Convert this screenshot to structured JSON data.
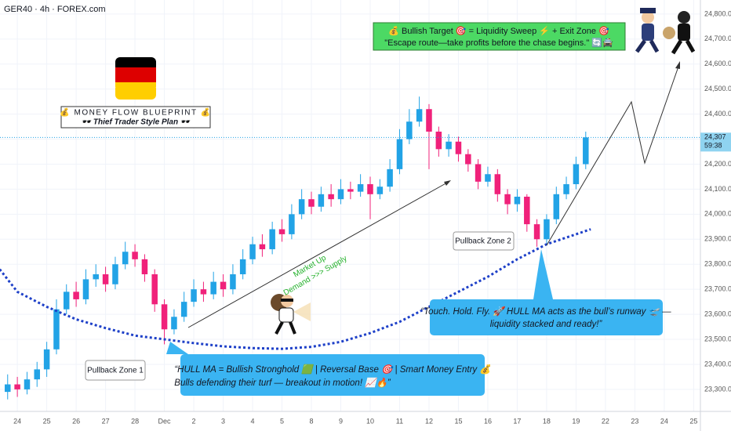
{
  "chart_data": {
    "type": "candlestick",
    "header": "GER40 · 4h · FOREX.com",
    "up_color": "#22a3e6",
    "down_color": "#f0217a",
    "x": [
      -0.33,
      0,
      0.33,
      0.67,
      1,
      1.33,
      1.67,
      2,
      2.33,
      2.67,
      3,
      3.33,
      3.67,
      4,
      4.33,
      4.67,
      5,
      5.33,
      5.67,
      6,
      6.33,
      6.67,
      7,
      7.33,
      7.67,
      8,
      8.33,
      8.67,
      9,
      9.33,
      9.67,
      10,
      10.33,
      10.67,
      11,
      11.33,
      11.67,
      12,
      12.33,
      12.67,
      13,
      13.33,
      13.67,
      14,
      14.33,
      14.67,
      15,
      15.33,
      15.67,
      16,
      16.33,
      16.67,
      17,
      17.33,
      17.67,
      18,
      18.33,
      18.67,
      19,
      19.33
    ],
    "open": [
      23290,
      23320,
      23300,
      23340,
      23380,
      23460,
      23620,
      23690,
      23660,
      23740,
      23760,
      23720,
      23800,
      23850,
      23820,
      23760,
      23640,
      23540,
      23590,
      23650,
      23700,
      23680,
      23730,
      23700,
      23760,
      23820,
      23880,
      23860,
      23940,
      23920,
      24000,
      24060,
      24030,
      24080,
      24060,
      24100,
      24090,
      24120,
      24080,
      24110,
      24180,
      24300,
      24370,
      24420,
      24330,
      24260,
      24290,
      24240,
      24200,
      24130,
      24160,
      24080,
      24040,
      24070,
      23960,
      23900,
      23980,
      24080,
      24120,
      24200
    ],
    "high": [
      23360,
      23350,
      23370,
      23410,
      23490,
      23660,
      23720,
      23730,
      23780,
      23800,
      23790,
      23830,
      23890,
      23880,
      23840,
      23780,
      23660,
      23620,
      23690,
      23740,
      23730,
      23770,
      23760,
      23800,
      23860,
      23910,
      23920,
      23970,
      23980,
      24040,
      24100,
      24090,
      24110,
      24120,
      24140,
      24130,
      24160,
      24150,
      24140,
      24220,
      24340,
      24420,
      24470,
      24440,
      24350,
      24320,
      24310,
      24260,
      24220,
      24190,
      24180,
      24100,
      24100,
      24080,
      23980,
      24000,
      24110,
      24150,
      24230,
      24330
    ],
    "low": [
      23260,
      23270,
      23280,
      23310,
      23350,
      23440,
      23600,
      23630,
      23640,
      23710,
      23690,
      23700,
      23780,
      23790,
      23730,
      23610,
      23480,
      23520,
      23570,
      23630,
      23650,
      23660,
      23670,
      23680,
      23740,
      23800,
      23830,
      23840,
      23890,
      23900,
      23980,
      24000,
      24010,
      24030,
      24040,
      24060,
      24070,
      23980,
      24060,
      24090,
      24160,
      24280,
      24350,
      24180,
      24230,
      24230,
      24210,
      24170,
      24100,
      24110,
      24050,
      24000,
      24010,
      23930,
      23870,
      23880,
      23960,
      24060,
      24100,
      24180
    ],
    "close": [
      23320,
      23300,
      23340,
      23380,
      23460,
      23620,
      23690,
      23660,
      23740,
      23760,
      23720,
      23800,
      23850,
      23820,
      23760,
      23640,
      23540,
      23590,
      23650,
      23700,
      23680,
      23730,
      23700,
      23760,
      23820,
      23880,
      23860,
      23940,
      23920,
      24000,
      24060,
      24030,
      24080,
      24060,
      24100,
      24090,
      24120,
      24080,
      24110,
      24180,
      24300,
      24370,
      24420,
      24330,
      24260,
      24290,
      24240,
      24200,
      24130,
      24160,
      24080,
      24040,
      24070,
      23960,
      23900,
      23980,
      24080,
      24120,
      24200,
      24307
    ],
    "hull_ma": {
      "color": "#1e40c8",
      "x": [
        -0.6,
        0,
        1,
        2,
        3,
        4,
        5,
        6,
        7,
        8,
        9,
        10,
        11,
        12,
        13,
        14,
        15,
        16,
        17,
        18,
        19,
        19.5
      ],
      "values": [
        23780,
        23690,
        23630,
        23580,
        23545,
        23515,
        23500,
        23485,
        23472,
        23465,
        23462,
        23470,
        23490,
        23525,
        23570,
        23630,
        23690,
        23750,
        23820,
        23880,
        23920,
        23940
      ]
    },
    "last_price": {
      "value": 24307,
      "label": "24,307"
    },
    "countdown": "59:38",
    "xlim": [
      -0.59,
      23.23
    ],
    "ylim": [
      23212,
      24856
    ],
    "yticks": [
      {
        "value": 23300,
        "label": "23,300.0"
      },
      {
        "value": 23400,
        "label": "23,400.0"
      },
      {
        "value": 23500,
        "label": "23,500.0"
      },
      {
        "value": 23600,
        "label": "23,600.0"
      },
      {
        "value": 23700,
        "label": "23,700.0"
      },
      {
        "value": 23800,
        "label": "23,800.0"
      },
      {
        "value": 23900,
        "label": "23,900.0"
      },
      {
        "value": 24000,
        "label": "24,000.0"
      },
      {
        "value": 24100,
        "label": "24,100.0"
      },
      {
        "value": 24200,
        "label": "24,200.0"
      },
      {
        "value": 24300,
        "label": "24,300.0"
      },
      {
        "value": 24400,
        "label": "24,400.0"
      },
      {
        "value": 24500,
        "label": "24,500.0"
      },
      {
        "value": 24600,
        "label": "24,600.0"
      },
      {
        "value": 24700,
        "label": "24,700.0"
      },
      {
        "value": 24800,
        "label": "24,800.0"
      }
    ],
    "xticks": [
      {
        "value": 0,
        "label": "24"
      },
      {
        "value": 1,
        "label": "25"
      },
      {
        "value": 2,
        "label": "26"
      },
      {
        "value": 3,
        "label": "27"
      },
      {
        "value": 4,
        "label": "28"
      },
      {
        "value": 5,
        "label": "Dec"
      },
      {
        "value": 6,
        "label": "2"
      },
      {
        "value": 7,
        "label": "3"
      },
      {
        "value": 8,
        "label": "4"
      },
      {
        "value": 9,
        "label": "5"
      },
      {
        "value": 10,
        "label": "8"
      },
      {
        "value": 11,
        "label": "9"
      },
      {
        "value": 12,
        "label": "10"
      },
      {
        "value": 13,
        "label": "11"
      },
      {
        "value": 14,
        "label": "12"
      },
      {
        "value": 15,
        "label": "15"
      },
      {
        "value": 16,
        "label": "16"
      },
      {
        "value": 17,
        "label": "17"
      },
      {
        "value": 18,
        "label": "18"
      },
      {
        "value": 19,
        "label": "19"
      },
      {
        "value": 20,
        "label": "22"
      },
      {
        "value": 21,
        "label": "23"
      },
      {
        "value": 22,
        "label": "24"
      },
      {
        "value": 23,
        "label": "25"
      }
    ],
    "annotations": {
      "blueprint_title": "💰 MONEY FLOW BLUEPRINT 💰",
      "blueprint_subtitle": "🕶️ Thief Trader Style Plan 🕶️",
      "target_line1": "💰 Bullish Target 🎯 = Liquidity Sweep ⚡ + Exit Zone 🎯",
      "target_line2": "\"Escape route—take profits before the chase begins.\" 🔄🚔",
      "market_up": "Market Up",
      "demand_supply": "Demand >>> Supply",
      "pullback1": "Pullback Zone 1",
      "pullback2": "Pullback Zone 2",
      "callout1_line1": "“HULL MA = Bullish Stronghold 🟩 | Reversal Base 🎯 | Smart Money Entry 💰",
      "callout1_line2": "Bulls defending their turf — breakout in motion! 📈🔥”",
      "callout2_line1": "“Touch. Hold. Fly. 🚀 HULL MA acts as the bull’s runway 🛫 —",
      "callout2_line2": "liquidity stacked and ready!”"
    }
  }
}
